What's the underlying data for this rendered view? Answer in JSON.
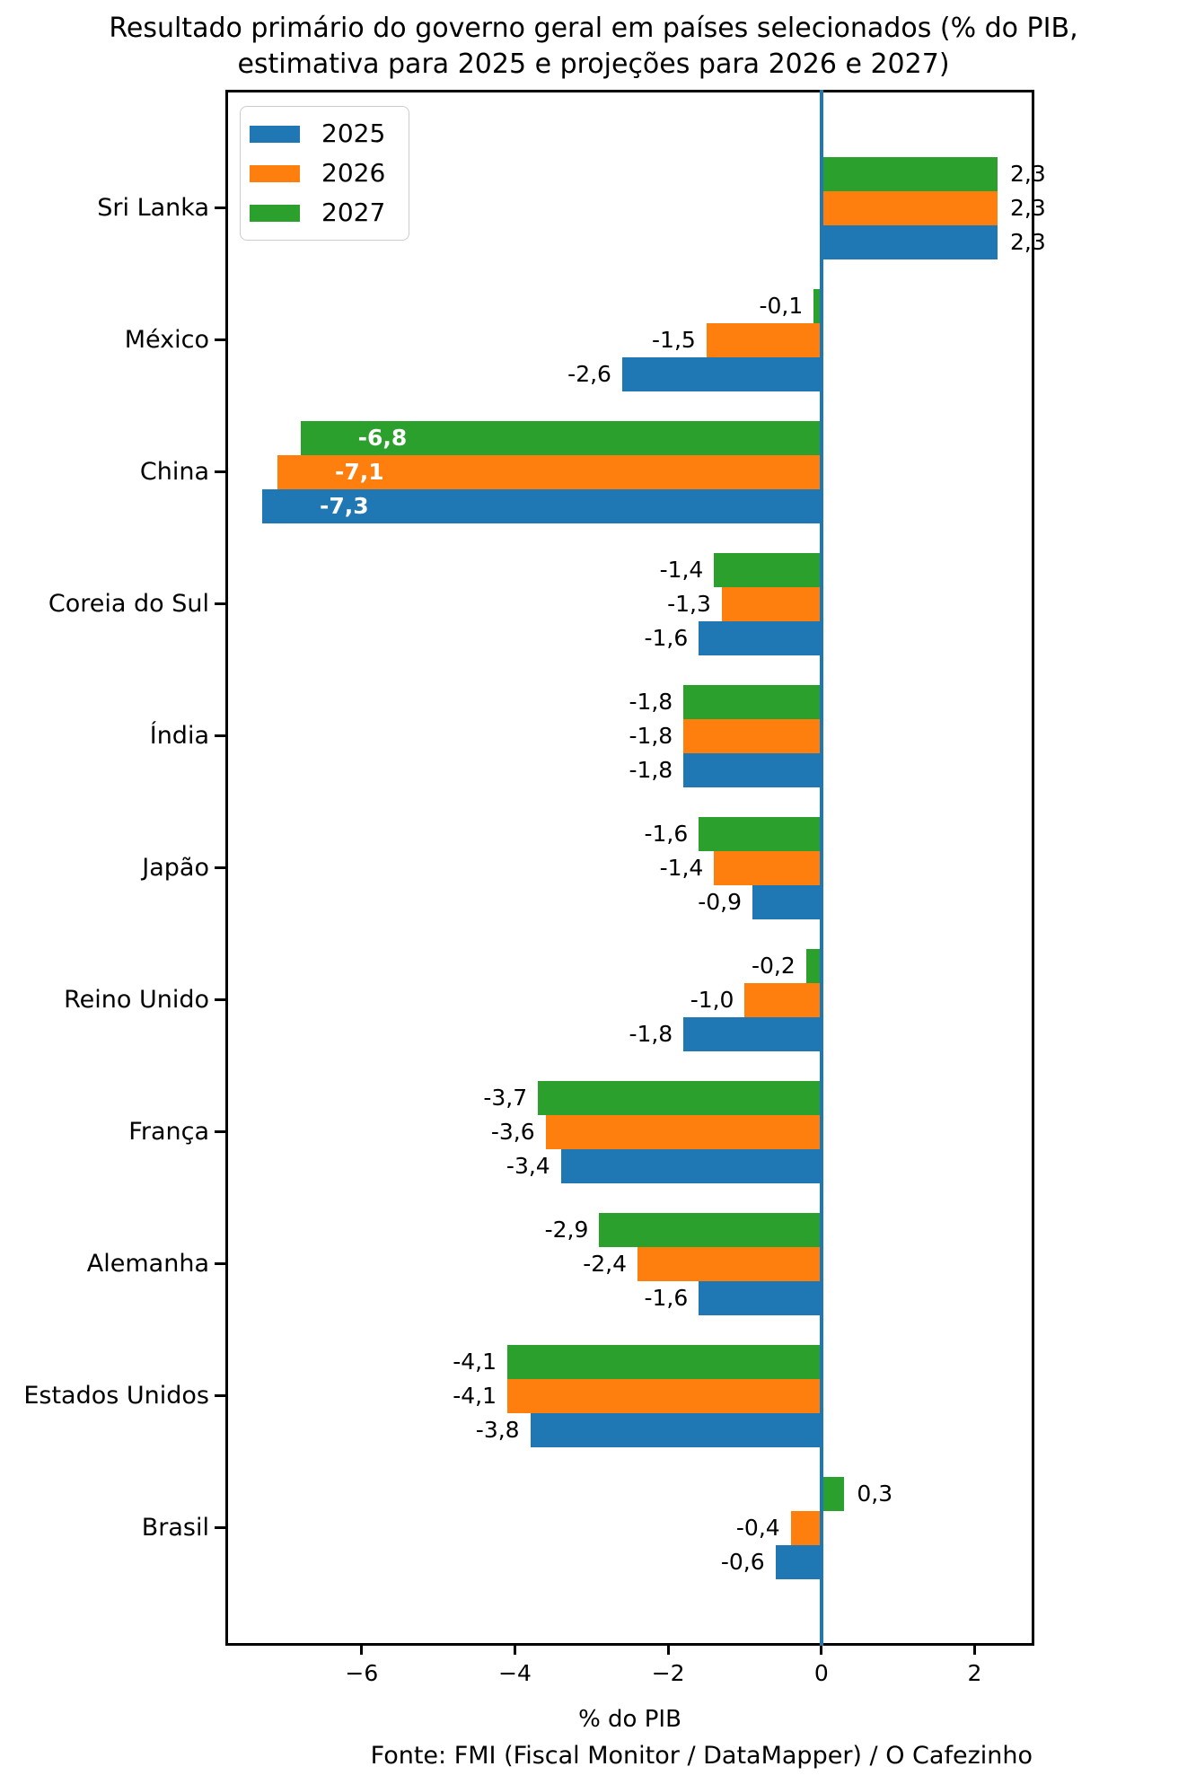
{
  "title": {
    "line1": "Resultado primário do governo geral em países selecionados (% do PIB,",
    "line2": "estimativa para 2025 e projeções para 2026 e 2027)"
  },
  "footer": "Fonte: FMI (Fiscal Monitor / DataMapper) / O Cafezinho",
  "chart_data": {
    "type": "bar",
    "orientation": "horizontal",
    "title": "Resultado primário do governo geral em países selecionados (% do PIB, estimativa para 2025 e projeções para 2026 e 2027)",
    "xlabel": "% do PIB",
    "ylabel": "",
    "xlim": [
      -7.78,
      2.78
    ],
    "xticks": [
      -6,
      -4,
      -2,
      0,
      2
    ],
    "xtick_labels": [
      "−6",
      "−4",
      "−2",
      "0",
      "2"
    ],
    "grid": false,
    "legend_position": "upper left",
    "zero_line_color": "#1f77b4",
    "decimal_separator": ",",
    "value_labels_inside_category": "China",
    "categories": [
      "Sri Lanka",
      "México",
      "China",
      "Coreia do Sul",
      "Índia",
      "Japão",
      "Reino Unido",
      "França",
      "Alemanha",
      "Estados Unidos",
      "Brasil"
    ],
    "series": [
      {
        "name": "2025",
        "color": "#1f77b4",
        "values": [
          2.3,
          -2.6,
          -7.3,
          -1.6,
          -1.8,
          -0.9,
          -1.8,
          -3.4,
          -1.6,
          -3.8,
          -0.6
        ]
      },
      {
        "name": "2026",
        "color": "#ff7f0e",
        "values": [
          2.3,
          -1.5,
          -7.1,
          -1.3,
          -1.8,
          -1.4,
          -1.0,
          -3.6,
          -2.4,
          -4.1,
          -0.4
        ]
      },
      {
        "name": "2027",
        "color": "#2ca02c",
        "values": [
          2.3,
          -0.1,
          -6.8,
          -1.4,
          -1.8,
          -1.6,
          -0.2,
          -3.7,
          -2.9,
          -4.1,
          0.3
        ]
      }
    ]
  }
}
